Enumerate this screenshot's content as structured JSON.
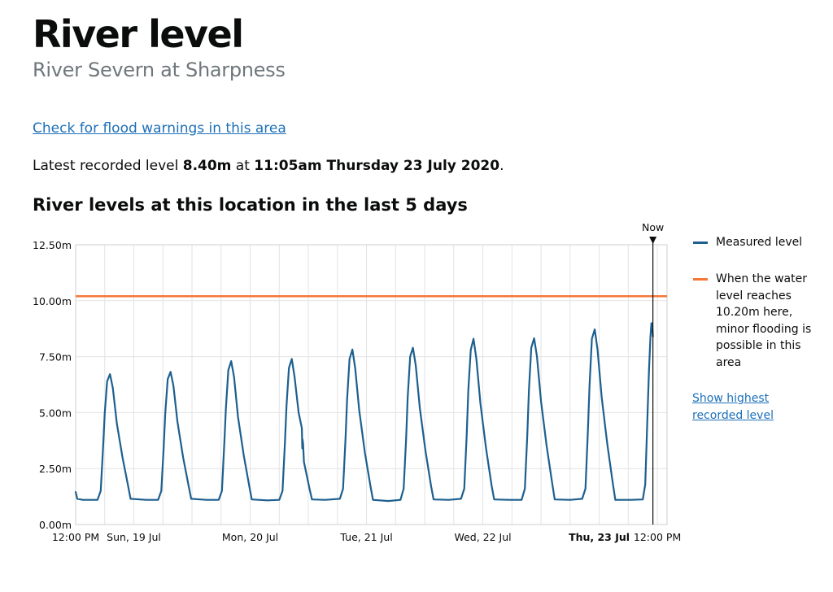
{
  "header": {
    "title": "River level",
    "subtitle": "River Severn at Sharpness"
  },
  "flood_link": "Check for flood warnings in this area",
  "latest": {
    "prefix": "Latest recorded level ",
    "level": "8.40m",
    "middle": " at ",
    "datetime": "11:05am Thursday 23 July 2020",
    "suffix": "."
  },
  "chart_heading": "River levels at this location in the last 5 days",
  "legend": {
    "measured": "Measured level",
    "threshold": "When the water level reaches 10.20m here, minor flooding is possible in this area",
    "show_highest": "Show highest recorded level"
  },
  "colors": {
    "measured": "#1d5f8f",
    "threshold": "#f47738",
    "link": "#1d70b8",
    "grid": "#e3e3e3",
    "now_line": "#0b0c0c"
  },
  "chart_data": {
    "type": "line",
    "now_label": "Now",
    "threshold": 10.2,
    "grid": true,
    "legend_position": "right",
    "xlim": [
      "2020-07-18 12:00",
      "2020-07-23 14:00"
    ],
    "ylim": [
      0,
      12.5
    ],
    "y_ticks": [
      {
        "value": 0,
        "label": "0.00m"
      },
      {
        "value": 2.5,
        "label": "2.50m"
      },
      {
        "value": 5,
        "label": "5.00m"
      },
      {
        "value": 7.5,
        "label": "7.50m"
      },
      {
        "value": 10,
        "label": "10.00m"
      },
      {
        "value": 12.5,
        "label": "12.50m"
      }
    ],
    "x_ticks": [
      {
        "value": "2020-07-18 12:00",
        "label": "12:00 PM",
        "bold": false
      },
      {
        "value": "2020-07-19 00:00",
        "label": "Sun, 19 Jul",
        "bold": false
      },
      {
        "value": "2020-07-20 00:00",
        "label": "Mon, 20 Jul",
        "bold": false
      },
      {
        "value": "2020-07-21 00:00",
        "label": "Tue, 21 Jul",
        "bold": false
      },
      {
        "value": "2020-07-22 00:00",
        "label": "Wed, 22 Jul",
        "bold": false
      },
      {
        "value": "2020-07-23 00:00",
        "label": "Thu, 23 Jul",
        "bold": true
      },
      {
        "value": "2020-07-23 12:00",
        "label": "12:00 PM",
        "bold": false
      }
    ],
    "now": "2020-07-23 11:05",
    "series": [
      {
        "name": "Measured level",
        "points": [
          [
            "2020-07-18 12:00",
            1.45
          ],
          [
            "2020-07-18 12:20",
            1.15
          ],
          [
            "2020-07-18 13:30",
            1.1
          ],
          [
            "2020-07-18 16:30",
            1.1
          ],
          [
            "2020-07-18 17:10",
            1.5
          ],
          [
            "2020-07-18 17:40",
            3.5
          ],
          [
            "2020-07-18 18:00",
            5.0
          ],
          [
            "2020-07-18 18:30",
            6.4
          ],
          [
            "2020-07-18 19:05",
            6.72
          ],
          [
            "2020-07-18 19:40",
            6.1
          ],
          [
            "2020-07-18 20:30",
            4.5
          ],
          [
            "2020-07-18 21:40",
            3.0
          ],
          [
            "2020-07-18 22:50",
            1.7
          ],
          [
            "2020-07-18 23:20",
            1.15
          ],
          [
            "2020-07-19 02:30",
            1.1
          ],
          [
            "2020-07-19 05:00",
            1.1
          ],
          [
            "2020-07-19 05:40",
            1.5
          ],
          [
            "2020-07-19 06:10",
            3.5
          ],
          [
            "2020-07-19 06:30",
            5.0
          ],
          [
            "2020-07-19 07:00",
            6.5
          ],
          [
            "2020-07-19 07:35",
            6.82
          ],
          [
            "2020-07-19 08:10",
            6.2
          ],
          [
            "2020-07-19 09:00",
            4.6
          ],
          [
            "2020-07-19 10:10",
            3.0
          ],
          [
            "2020-07-19 11:20",
            1.7
          ],
          [
            "2020-07-19 11:50",
            1.15
          ],
          [
            "2020-07-19 15:00",
            1.1
          ],
          [
            "2020-07-19 17:30",
            1.1
          ],
          [
            "2020-07-19 18:10",
            1.5
          ],
          [
            "2020-07-19 18:40",
            3.6
          ],
          [
            "2020-07-19 19:00",
            5.2
          ],
          [
            "2020-07-19 19:30",
            6.9
          ],
          [
            "2020-07-19 20:05",
            7.3
          ],
          [
            "2020-07-19 20:40",
            6.6
          ],
          [
            "2020-07-19 21:30",
            4.8
          ],
          [
            "2020-07-19 22:40",
            3.1
          ],
          [
            "2020-07-19 23:50",
            1.7
          ],
          [
            "2020-07-20 00:20",
            1.12
          ],
          [
            "2020-07-20 03:30",
            1.08
          ],
          [
            "2020-07-20 06:00",
            1.1
          ],
          [
            "2020-07-20 06:40",
            1.5
          ],
          [
            "2020-07-20 07:10",
            3.6
          ],
          [
            "2020-07-20 07:30",
            5.3
          ],
          [
            "2020-07-20 08:00",
            7.0
          ],
          [
            "2020-07-20 08:35",
            7.4
          ],
          [
            "2020-07-20 09:10",
            6.6
          ],
          [
            "2020-07-20 10:00",
            5.0
          ],
          [
            "2020-07-20 10:40",
            4.3
          ],
          [
            "2020-07-20 10:45",
            3.4
          ],
          [
            "2020-07-20 10:48",
            3.8
          ],
          [
            "2020-07-20 10:55",
            3.6
          ],
          [
            "2020-07-20 11:05",
            2.8
          ],
          [
            "2020-07-20 12:15",
            1.6
          ],
          [
            "2020-07-20 12:45",
            1.12
          ],
          [
            "2020-07-20 15:30",
            1.1
          ],
          [
            "2020-07-20 18:30",
            1.15
          ],
          [
            "2020-07-20 19:10",
            1.6
          ],
          [
            "2020-07-20 19:40",
            3.8
          ],
          [
            "2020-07-20 20:00",
            5.6
          ],
          [
            "2020-07-20 20:30",
            7.4
          ],
          [
            "2020-07-20 21:05",
            7.82
          ],
          [
            "2020-07-20 21:40",
            7.0
          ],
          [
            "2020-07-20 22:30",
            5.1
          ],
          [
            "2020-07-20 23:40",
            3.2
          ],
          [
            "2020-07-21 00:50",
            1.7
          ],
          [
            "2020-07-21 01:20",
            1.1
          ],
          [
            "2020-07-21 04:30",
            1.05
          ],
          [
            "2020-07-21 07:00",
            1.1
          ],
          [
            "2020-07-21 07:40",
            1.6
          ],
          [
            "2020-07-21 08:10",
            3.8
          ],
          [
            "2020-07-21 08:30",
            5.7
          ],
          [
            "2020-07-21 09:00",
            7.5
          ],
          [
            "2020-07-21 09:35",
            7.9
          ],
          [
            "2020-07-21 10:10",
            7.1
          ],
          [
            "2020-07-21 11:00",
            5.2
          ],
          [
            "2020-07-21 12:10",
            3.3
          ],
          [
            "2020-07-21 13:20",
            1.7
          ],
          [
            "2020-07-21 13:50",
            1.12
          ],
          [
            "2020-07-21 17:00",
            1.1
          ],
          [
            "2020-07-21 19:30",
            1.15
          ],
          [
            "2020-07-21 20:10",
            1.6
          ],
          [
            "2020-07-21 20:40",
            4.0
          ],
          [
            "2020-07-21 21:00",
            6.0
          ],
          [
            "2020-07-21 21:30",
            7.8
          ],
          [
            "2020-07-21 22:05",
            8.3
          ],
          [
            "2020-07-21 22:40",
            7.4
          ],
          [
            "2020-07-21 23:30",
            5.4
          ],
          [
            "2020-07-22 00:40",
            3.4
          ],
          [
            "2020-07-22 01:50",
            1.7
          ],
          [
            "2020-07-22 02:20",
            1.12
          ],
          [
            "2020-07-22 05:30",
            1.1
          ],
          [
            "2020-07-22 08:00",
            1.1
          ],
          [
            "2020-07-22 08:40",
            1.6
          ],
          [
            "2020-07-22 09:10",
            4.0
          ],
          [
            "2020-07-22 09:30",
            6.0
          ],
          [
            "2020-07-22 10:00",
            7.9
          ],
          [
            "2020-07-22 10:35",
            8.32
          ],
          [
            "2020-07-22 11:10",
            7.5
          ],
          [
            "2020-07-22 12:00",
            5.5
          ],
          [
            "2020-07-22 13:10",
            3.5
          ],
          [
            "2020-07-22 14:20",
            1.8
          ],
          [
            "2020-07-22 14:50",
            1.12
          ],
          [
            "2020-07-22 18:00",
            1.1
          ],
          [
            "2020-07-22 20:30",
            1.15
          ],
          [
            "2020-07-22 21:10",
            1.6
          ],
          [
            "2020-07-22 21:40",
            4.2
          ],
          [
            "2020-07-22 22:00",
            6.2
          ],
          [
            "2020-07-22 22:30",
            8.3
          ],
          [
            "2020-07-22 23:05",
            8.72
          ],
          [
            "2020-07-22 23:40",
            7.8
          ],
          [
            "2020-07-23 00:30",
            5.7
          ],
          [
            "2020-07-23 01:40",
            3.6
          ],
          [
            "2020-07-23 02:50",
            1.8
          ],
          [
            "2020-07-23 03:20",
            1.1
          ],
          [
            "2020-07-23 06:30",
            1.1
          ],
          [
            "2020-07-23 09:00",
            1.12
          ],
          [
            "2020-07-23 09:30",
            1.8
          ],
          [
            "2020-07-23 09:55",
            4.6
          ],
          [
            "2020-07-23 10:15",
            6.8
          ],
          [
            "2020-07-23 10:35",
            8.4
          ],
          [
            "2020-07-23 10:47",
            9.0
          ],
          [
            "2020-07-23 10:53",
            8.6
          ],
          [
            "2020-07-23 10:58",
            8.8
          ],
          [
            "2020-07-23 11:05",
            8.4
          ]
        ]
      }
    ]
  }
}
